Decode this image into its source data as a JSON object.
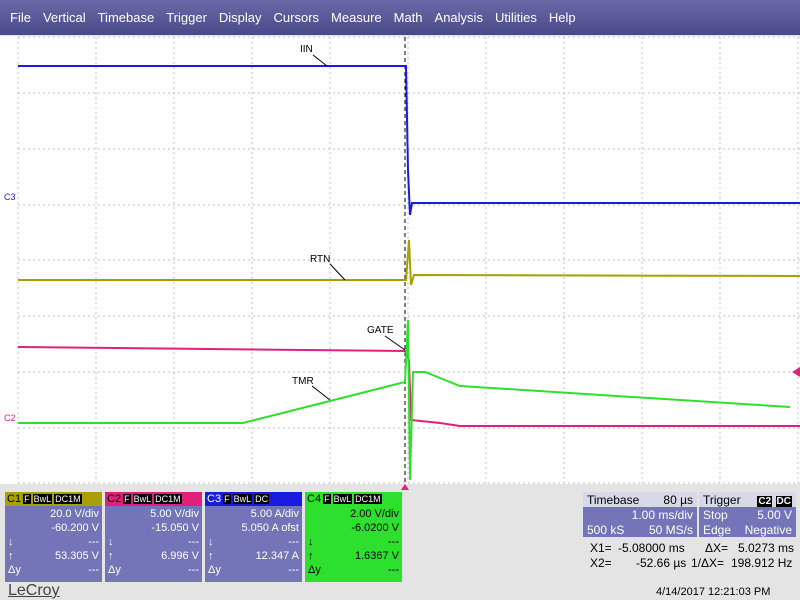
{
  "menu": [
    "File",
    "Vertical",
    "Timebase",
    "Trigger",
    "Display",
    "Cursors",
    "Measure",
    "Math",
    "Analysis",
    "Utilities",
    "Help"
  ],
  "waveform_labels": [
    "IIN",
    "RTN",
    "GATE",
    "TMR"
  ],
  "ground_markers": [
    "C3",
    "C2"
  ],
  "cursor_labels": [
    "↓",
    "↑",
    "Δy"
  ],
  "channels": [
    {
      "name": "C1",
      "badges": [
        "F",
        "BwL",
        "DC1M"
      ],
      "scale": "20.0 V/div",
      "offset": "-60.200 V",
      "cursor_down": "---",
      "cursor_up": "53.305 V",
      "delta_y": "---"
    },
    {
      "name": "C2",
      "badges": [
        "F",
        "BwL",
        "DC1M"
      ],
      "scale": "5.00 V/div",
      "offset": "-15.050 V",
      "cursor_down": "---",
      "cursor_up": "6.996 V",
      "delta_y": "---"
    },
    {
      "name": "C3",
      "badges": [
        "F",
        "BwL",
        "DC"
      ],
      "scale": "5.00 A/div",
      "offset": "5.050 A ofst",
      "cursor_down": "---",
      "cursor_up": "12.347 A",
      "delta_y": "---"
    },
    {
      "name": "C4",
      "badges": [
        "F",
        "BwL",
        "DC1M"
      ],
      "scale": "2.00 V/div",
      "offset": "-6.0200 V",
      "cursor_down": "---",
      "cursor_up": "1.6367 V",
      "delta_y": "---"
    }
  ],
  "timebase": {
    "title": "Timebase",
    "delay": "80 µs",
    "scale": "1.00 ms/div",
    "samples": "500 kS",
    "rate": "50 MS/s"
  },
  "trigger": {
    "title": "Trigger",
    "source": "C2",
    "coupling": "DC",
    "mode": "Stop",
    "level": "5.00 V",
    "type": "Edge",
    "slope": "Negative"
  },
  "cursors": {
    "x1_label": "X1=",
    "x1": "-5.08000 ms",
    "dx_label": "ΔX=",
    "dx": "5.0273 ms",
    "x2_label": "X2=",
    "x2": "-52.66 µs",
    "inv_label": "1/ΔX=",
    "inv": "198.912 Hz"
  },
  "footer": {
    "brand": "LeCroy",
    "timestamp": "4/14/2017 12:21:03 PM"
  }
}
